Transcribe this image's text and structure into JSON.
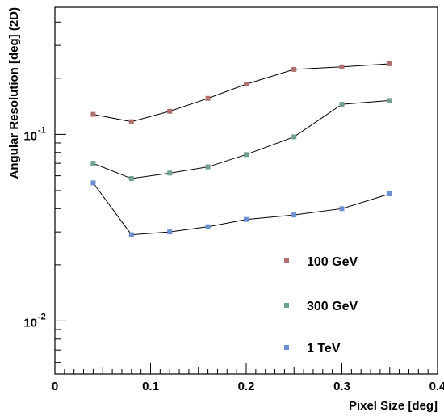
{
  "chart_data": {
    "type": "line",
    "title": "",
    "xlabel": "Pixel Size [deg]",
    "ylabel": "Angular Resolution [deg] (2D)",
    "xlim": [
      0,
      0.4
    ],
    "ylim": [
      0.0052,
      0.48
    ],
    "yscale": "log",
    "grid": false,
    "legend_position": "lower-right",
    "x_ticks": [
      {
        "value": 0,
        "label": "0"
      },
      {
        "value": 0.1,
        "label": "0.1"
      },
      {
        "value": 0.2,
        "label": "0.2"
      },
      {
        "value": 0.3,
        "label": "0.3"
      },
      {
        "value": 0.4,
        "label": "0.4"
      }
    ],
    "y_ticks": [
      {
        "value": 0.01,
        "base": "10",
        "exp": "-2"
      },
      {
        "value": 0.1,
        "base": "10",
        "exp": "-1"
      }
    ],
    "series": [
      {
        "name": "100 GeV",
        "color": "#b07070",
        "x": [
          0.04,
          0.08,
          0.12,
          0.16,
          0.2,
          0.25,
          0.3,
          0.35
        ],
        "y": [
          0.128,
          0.117,
          0.133,
          0.156,
          0.186,
          0.223,
          0.23,
          0.239
        ]
      },
      {
        "name": "300 GeV",
        "color": "#70a090",
        "x": [
          0.04,
          0.08,
          0.12,
          0.16,
          0.2,
          0.25,
          0.3,
          0.35
        ],
        "y": [
          0.07,
          0.058,
          0.062,
          0.067,
          0.078,
          0.097,
          0.145,
          0.152
        ]
      },
      {
        "name": "1 TeV",
        "color": "#6b8fd0",
        "x": [
          0.04,
          0.08,
          0.12,
          0.16,
          0.2,
          0.25,
          0.3,
          0.35
        ],
        "y": [
          0.055,
          0.029,
          0.03,
          0.032,
          0.035,
          0.037,
          0.04,
          0.048
        ]
      }
    ]
  }
}
